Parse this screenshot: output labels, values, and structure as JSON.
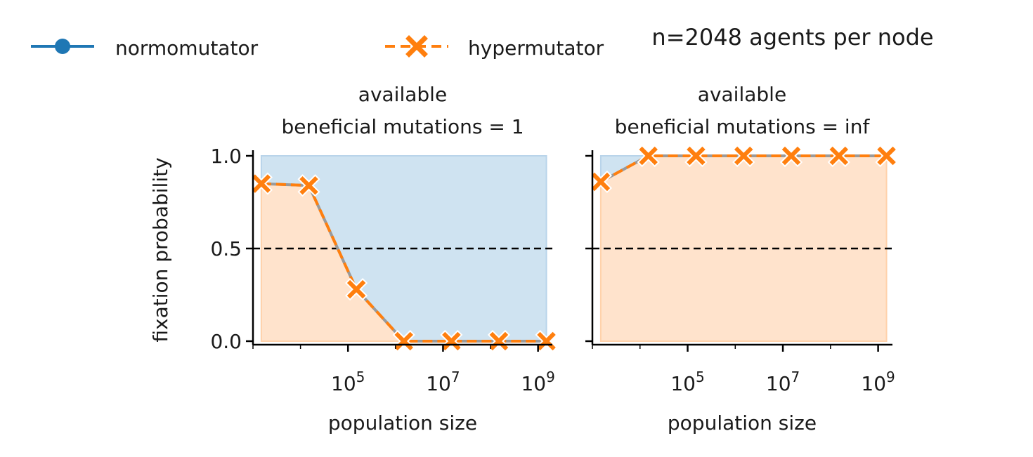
{
  "suptitle": "n=2048 agents per node",
  "legend": {
    "placement": "top-left",
    "entries": [
      {
        "label": "normomutator",
        "color": "#1f77b4",
        "marker": "circle",
        "linestyle": "solid"
      },
      {
        "label": "hypermutator",
        "color": "#ff7f0e",
        "marker": "x",
        "linestyle": "dashed"
      }
    ]
  },
  "colors": {
    "normomutator": "#1f77b4",
    "hypermutator": "#ff7f0e",
    "normo_fill": "#cfe3f1",
    "hyper_fill": "#ffe3cc",
    "reference_line": "#000000"
  },
  "chart_data": [
    {
      "type": "line",
      "title_line1": "available",
      "title_line2": "beneficial mutations = 1",
      "xlabel": "population size",
      "ylabel": "fixation probability",
      "xscale": "log",
      "xlim": [
        1000,
        2000000000
      ],
      "ylim": [
        0,
        1
      ],
      "xticks": [
        100000,
        10000000,
        1000000000
      ],
      "xtick_labels": [
        {
          "base": "10",
          "exp": "5"
        },
        {
          "base": "10",
          "exp": "7"
        },
        {
          "base": "10",
          "exp": "9"
        }
      ],
      "yticks": [
        0,
        0.5,
        1
      ],
      "ytick_labels": [
        "0.0",
        "0.5",
        "1.0"
      ],
      "reference_line_y": 0.5,
      "grid": false,
      "x": [
        1500,
        15000,
        150000,
        1500000,
        15000000,
        150000000,
        1500000000
      ],
      "series": [
        {
          "name": "hypermutator",
          "values": [
            0.85,
            0.84,
            0.28,
            0.0,
            0.0,
            0.0,
            0.0
          ]
        },
        {
          "name": "normomutator",
          "values": [
            0.15,
            0.16,
            0.72,
            1.0,
            1.0,
            1.0,
            1.0
          ]
        }
      ]
    },
    {
      "type": "line",
      "title_line1": "available",
      "title_line2": "beneficial mutations = inf",
      "xlabel": "population size",
      "ylabel": "",
      "xscale": "log",
      "xlim": [
        1000,
        2000000000
      ],
      "ylim": [
        0,
        1
      ],
      "xticks": [
        100000,
        10000000,
        1000000000
      ],
      "xtick_labels": [
        {
          "base": "10",
          "exp": "5"
        },
        {
          "base": "10",
          "exp": "7"
        },
        {
          "base": "10",
          "exp": "9"
        }
      ],
      "yticks": [
        0,
        0.5,
        1
      ],
      "ytick_labels": [
        "",
        "",
        ""
      ],
      "reference_line_y": 0.5,
      "grid": false,
      "x": [
        1500,
        15000,
        150000,
        1500000,
        15000000,
        150000000,
        1500000000
      ],
      "series": [
        {
          "name": "hypermutator",
          "values": [
            0.86,
            1.0,
            1.0,
            1.0,
            1.0,
            1.0,
            1.0
          ]
        },
        {
          "name": "normomutator",
          "values": [
            0.14,
            0.0,
            0.0,
            0.0,
            0.0,
            0.0,
            0.0
          ]
        }
      ]
    }
  ]
}
